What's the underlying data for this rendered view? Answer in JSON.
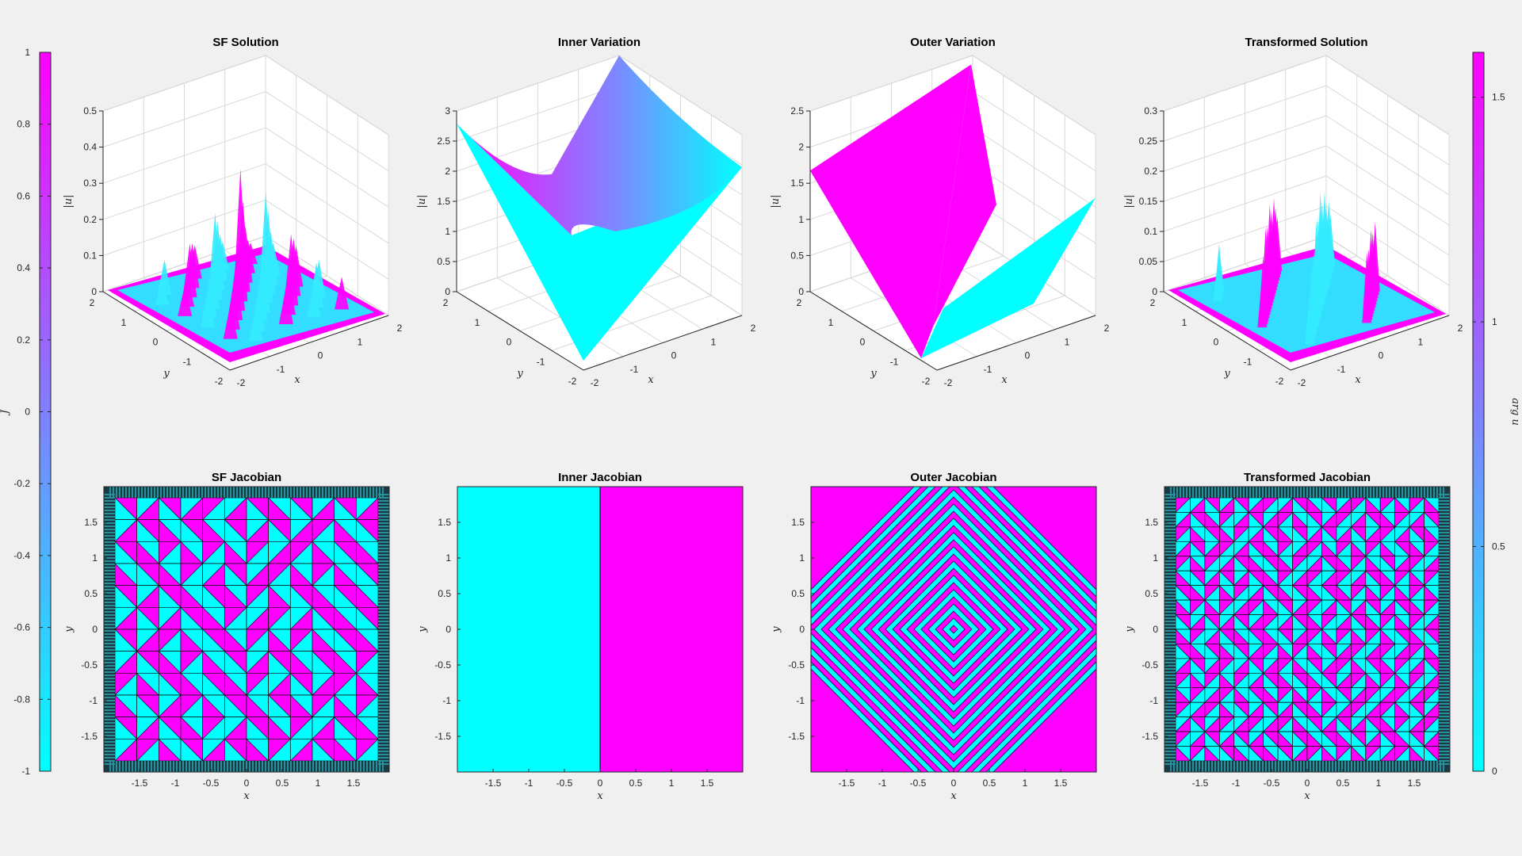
{
  "colors": {
    "cyan": "#00ffff",
    "magenta": "#ff00ff",
    "mid": "#8080ff",
    "background": "#f0f0f0",
    "axis": "#262626"
  },
  "colorbars": [
    {
      "label": "J",
      "ticks": [
        "1",
        "0.8",
        "0.6",
        "0.4",
        "0.2",
        "0",
        "-0.2",
        "-0.4",
        "-0.6",
        "-0.8",
        "-1"
      ],
      "range": [
        -1,
        1
      ]
    },
    {
      "label": "arg u",
      "ticks": [
        "1.5",
        "1",
        "0.5",
        "0"
      ],
      "range": [
        0,
        1.6
      ]
    }
  ],
  "chart_data": [
    {
      "type": "surface3d",
      "title": "SF Solution",
      "zlabel": "|u|",
      "xlabel": "x",
      "ylabel": "y",
      "zticks": [
        "0.5",
        "0.4",
        "0.3",
        "0.2",
        "0.1",
        "0"
      ],
      "zlim": [
        0,
        0.5
      ],
      "xticks": [
        "-2",
        "-1",
        "0",
        "1",
        "2"
      ],
      "yticks": [
        "-2",
        "-1",
        "0",
        "1",
        "2"
      ]
    },
    {
      "type": "surface3d",
      "title": "Inner Variation",
      "zlabel": "|u|",
      "xlabel": "x",
      "ylabel": "y",
      "zticks": [
        "3",
        "2.5",
        "2",
        "1.5",
        "1",
        "0.5",
        "0"
      ],
      "zlim": [
        0,
        3
      ],
      "xticks": [
        "-2",
        "-1",
        "0",
        "1",
        "2"
      ],
      "yticks": [
        "-2",
        "-1",
        "0",
        "1",
        "2"
      ]
    },
    {
      "type": "surface3d",
      "title": "Outer Variation",
      "zlabel": "|u|",
      "xlabel": "x",
      "ylabel": "y",
      "zticks": [
        "2.5",
        "2",
        "1.5",
        "1",
        "0.5",
        "0"
      ],
      "zlim": [
        0,
        2.5
      ],
      "xticks": [
        "-2",
        "-1",
        "0",
        "1",
        "2"
      ],
      "yticks": [
        "-2",
        "-1",
        "0",
        "1",
        "2"
      ]
    },
    {
      "type": "surface3d",
      "title": "Transformed Solution",
      "zlabel": "|u|",
      "xlabel": "x",
      "ylabel": "y",
      "zticks": [
        "0.3",
        "0.25",
        "0.2",
        "0.15",
        "0.1",
        "0.05",
        "0"
      ],
      "zlim": [
        0,
        0.3
      ],
      "xticks": [
        "-2",
        "-1",
        "0",
        "1",
        "2"
      ],
      "yticks": [
        "-2",
        "-1",
        "0",
        "1",
        "2"
      ]
    },
    {
      "type": "heatmap",
      "title": "SF Jacobian",
      "xlabel": "x",
      "ylabel": "y",
      "xticks": [
        "-1.5",
        "-1",
        "-0.5",
        "0",
        "0.5",
        "1",
        "1.5"
      ],
      "yticks": [
        "1.5",
        "1",
        "0.5",
        "0",
        "-0.5",
        "-1",
        "-1.5"
      ],
      "lim": [
        -2,
        2
      ]
    },
    {
      "type": "heatmap",
      "title": "Inner Jacobian",
      "xlabel": "x",
      "ylabel": "y",
      "xticks": [
        "-1.5",
        "-1",
        "-0.5",
        "0",
        "0.5",
        "1",
        "1.5"
      ],
      "yticks": [
        "1.5",
        "1",
        "0.5",
        "0",
        "-0.5",
        "-1",
        "-1.5"
      ],
      "lim": [
        -2,
        2
      ]
    },
    {
      "type": "heatmap",
      "title": "Outer Jacobian",
      "xlabel": "x",
      "ylabel": "y",
      "xticks": [
        "-1.5",
        "-1",
        "-0.5",
        "0",
        "0.5",
        "1",
        "1.5"
      ],
      "yticks": [
        "1.5",
        "1",
        "0.5",
        "0",
        "-0.5",
        "-1",
        "-1.5"
      ],
      "lim": [
        -2,
        2
      ]
    },
    {
      "type": "heatmap",
      "title": "Transformed Jacobian",
      "xlabel": "x",
      "ylabel": "y",
      "xticks": [
        "-1.5",
        "-1",
        "-0.5",
        "0",
        "0.5",
        "1",
        "1.5"
      ],
      "yticks": [
        "1.5",
        "1",
        "0.5",
        "0",
        "-0.5",
        "-1",
        "-1.5"
      ],
      "lim": [
        -2,
        2
      ]
    }
  ]
}
